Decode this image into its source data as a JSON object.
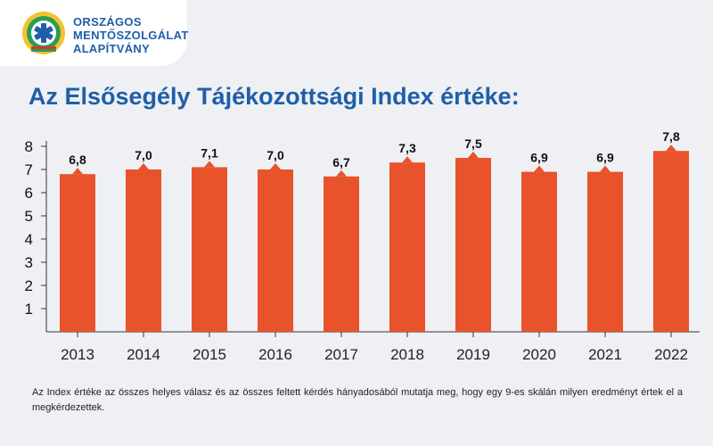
{
  "logo": {
    "lines": [
      "ORSZÁGOS",
      "MENTŐSZOLGÁLAT",
      "ALAPÍTVÁNY"
    ],
    "icon": "star-of-life-emblem-icon"
  },
  "colors": {
    "bar": "#e8532c",
    "title": "#1f5fa8",
    "background": "#eef0f4"
  },
  "title": "Az Elsősegély Tájékozottsági Index értéke:",
  "footnote": "Az Index értéke az összes helyes válasz és az összes feltett kérdés hányadosából mutatja meg, hogy egy 9-es skálán milyen eredményt értek el a megkérdezettek.",
  "chart_data": {
    "type": "bar",
    "title": "Az Elsősegély Tájékozottsági Index értéke:",
    "xlabel": "",
    "ylabel": "",
    "categories": [
      "2013",
      "2014",
      "2015",
      "2016",
      "2017",
      "2018",
      "2019",
      "2020",
      "2021",
      "2022"
    ],
    "values": [
      6.8,
      7.0,
      7.1,
      7.0,
      6.7,
      7.3,
      7.5,
      6.9,
      6.9,
      7.8
    ],
    "value_labels": [
      "6,8",
      "7,0",
      "7,1",
      "7,0",
      "6,7",
      "7,3",
      "7,5",
      "6,9",
      "6,9",
      "7,8"
    ],
    "y_ticks": [
      "1",
      "2",
      "3",
      "4",
      "5",
      "6",
      "7",
      "8"
    ],
    "ylim": [
      0,
      8
    ],
    "grid": false,
    "legend": "none"
  }
}
